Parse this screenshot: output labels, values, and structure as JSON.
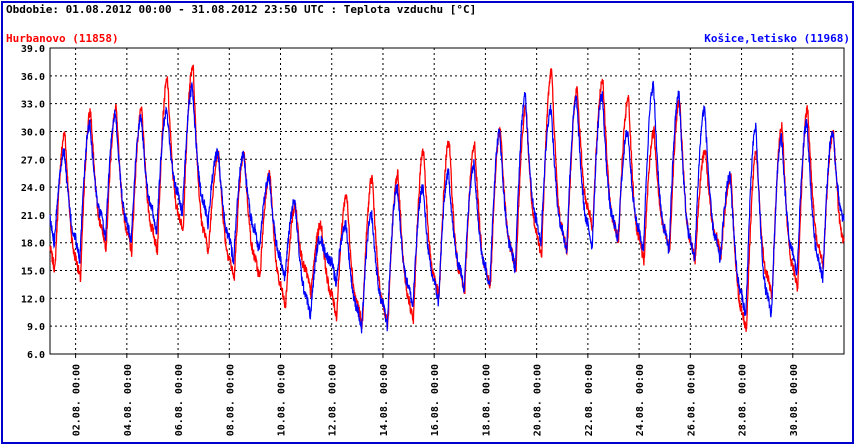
{
  "chart_data": {
    "type": "line",
    "title": "Obdobie: 01.08.2012 00:00 - 31.08.2012 23:50 UTC : Teplota vzduchu [°C]",
    "xlabel": "",
    "ylabel": "",
    "ylim": [
      6.0,
      39.0
    ],
    "y_ticks": [
      "6.0",
      "9.0",
      "12.0",
      "15.0",
      "18.0",
      "21.0",
      "24.0",
      "27.0",
      "30.0",
      "33.0",
      "36.0",
      "39.0"
    ],
    "x_range_days": [
      0,
      31
    ],
    "x_ticks": [
      {
        "day": 1,
        "label": "02.08. 00:00"
      },
      {
        "day": 3,
        "label": "04.08. 00:00"
      },
      {
        "day": 5,
        "label": "06.08. 00:00"
      },
      {
        "day": 7,
        "label": "08.08. 00:00"
      },
      {
        "day": 9,
        "label": "10.08. 00:00"
      },
      {
        "day": 11,
        "label": "12.08. 00:00"
      },
      {
        "day": 13,
        "label": "14.08. 00:00"
      },
      {
        "day": 15,
        "label": "16.08. 00:00"
      },
      {
        "day": 17,
        "label": "18.08. 00:00"
      },
      {
        "day": 19,
        "label": "20.08. 00:00"
      },
      {
        "day": 21,
        "label": "22.08. 00:00"
      },
      {
        "day": 23,
        "label": "24.08. 00:00"
      },
      {
        "day": 25,
        "label": "26.08. 00:00"
      },
      {
        "day": 27,
        "label": "28.08. 00:00"
      },
      {
        "day": 29,
        "label": "30.08. 00:00"
      }
    ],
    "grid": true,
    "series": [
      {
        "name": "Hurbanovo (11858)",
        "color": "#ff0000",
        "daily_min": [
          15.0,
          14.0,
          17.5,
          17.0,
          17.0,
          19.0,
          17.0,
          14.0,
          14.0,
          11.0,
          12.5,
          10.0,
          9.0,
          9.0,
          9.5,
          12.0,
          12.5,
          13.0,
          15.0,
          16.5,
          17.0,
          19.5,
          18.0,
          16.0,
          17.0,
          16.0,
          16.5,
          8.5,
          12.0,
          13.0,
          15.5,
          15.5
        ],
        "daily_max": [
          29.8,
          32.2,
          32.4,
          32.3,
          35.6,
          37.2,
          27.5,
          27.6,
          25.5,
          22.0,
          20.0,
          23.2,
          25.0,
          25.5,
          28.0,
          29.0,
          28.5,
          30.2,
          32.5,
          36.5,
          34.5,
          35.7,
          33.5,
          30.0,
          33.3,
          28.0,
          25.0,
          27.8,
          30.5,
          32.4,
          30.0
        ]
      },
      {
        "name": "Košice,letisko (11968)",
        "color": "#0000ff",
        "daily_min": [
          18.0,
          16.0,
          18.5,
          18.0,
          19.0,
          21.0,
          20.0,
          16.0,
          17.0,
          14.0,
          10.0,
          13.5,
          8.5,
          9.0,
          11.0,
          11.5,
          13.0,
          13.0,
          15.0,
          18.0,
          17.0,
          17.5,
          18.0,
          17.0,
          17.0,
          16.0,
          16.0,
          10.0,
          10.0,
          14.5,
          14.0,
          18.0
        ],
        "daily_max": [
          27.8,
          30.8,
          32.0,
          31.5,
          32.2,
          34.8,
          27.8,
          27.5,
          25.0,
          22.5,
          18.5,
          20.0,
          21.0,
          24.0,
          24.0,
          25.5,
          26.5,
          30.0,
          33.8,
          32.5,
          33.5,
          34.0,
          30.0,
          35.0,
          34.0,
          32.5,
          25.2,
          30.5,
          29.3,
          31.0,
          30.0
        ]
      }
    ]
  },
  "legend": {
    "left": "Hurbanovo (11858)",
    "right": "Košice,letisko (11968)"
  }
}
